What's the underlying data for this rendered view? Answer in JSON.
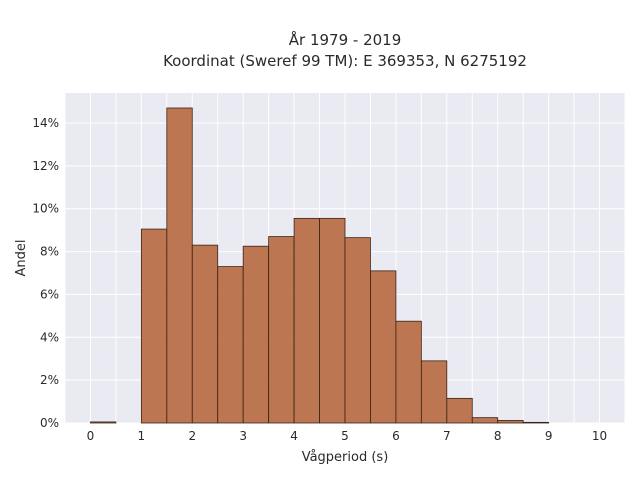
{
  "chart_data": {
    "type": "bar",
    "title": [
      "År 1979 - 2019",
      "Koordinat (Sweref 99 TM): E 369353, N 6275192"
    ],
    "xlabel": "Vågperiod (s)",
    "ylabel": "Andel",
    "xlim": [
      -0.5,
      10.5
    ],
    "ylim": [
      0,
      15.4
    ],
    "xticks": [
      0,
      1,
      2,
      3,
      4,
      5,
      6,
      7,
      8,
      9,
      10
    ],
    "xtick_labels": [
      "0",
      "1",
      "2",
      "3",
      "4",
      "5",
      "6",
      "7",
      "8",
      "9",
      "10"
    ],
    "yticks": [
      0,
      2,
      4,
      6,
      8,
      10,
      12,
      14
    ],
    "ytick_labels": [
      "0%",
      "2%",
      "4%",
      "6%",
      "8%",
      "10%",
      "12%",
      "14%"
    ],
    "bin_width": 0.5,
    "bins": [
      {
        "x0": 0.0,
        "value": 0.05
      },
      {
        "x0": 0.5,
        "value": 0.0
      },
      {
        "x0": 1.0,
        "value": 9.05
      },
      {
        "x0": 1.5,
        "value": 14.7
      },
      {
        "x0": 2.0,
        "value": 8.3
      },
      {
        "x0": 2.5,
        "value": 7.3
      },
      {
        "x0": 3.0,
        "value": 8.25
      },
      {
        "x0": 3.5,
        "value": 8.7
      },
      {
        "x0": 4.0,
        "value": 9.55
      },
      {
        "x0": 4.5,
        "value": 9.55
      },
      {
        "x0": 5.0,
        "value": 8.65
      },
      {
        "x0": 5.5,
        "value": 7.1
      },
      {
        "x0": 6.0,
        "value": 4.75
      },
      {
        "x0": 6.5,
        "value": 2.9
      },
      {
        "x0": 7.0,
        "value": 1.15
      },
      {
        "x0": 7.5,
        "value": 0.25
      },
      {
        "x0": 8.0,
        "value": 0.12
      },
      {
        "x0": 8.5,
        "value": 0.03
      }
    ],
    "grid": true,
    "colors": {
      "bar": "#b86d45",
      "bar_edge": "#3a2418",
      "plot_bg": "#eaeaf2",
      "grid": "#ffffff"
    }
  }
}
